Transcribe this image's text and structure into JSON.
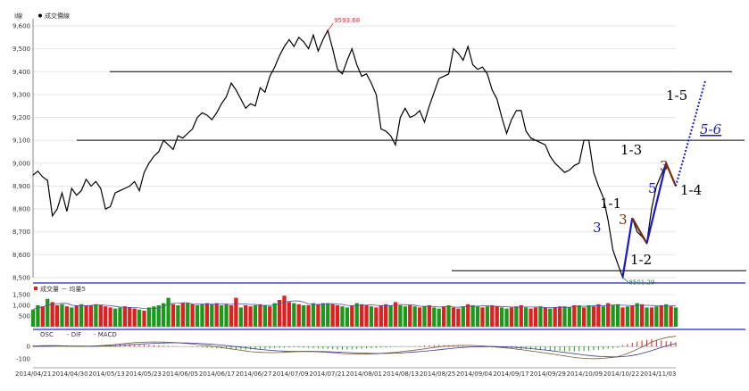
{
  "chart_data": {
    "type": "line",
    "legend": {
      "axis_unit": "I線",
      "series_name": "成交價線"
    },
    "price_ylim": [
      8500,
      9600
    ],
    "y_ticks": [
      "8,500",
      "8,600",
      "8,700",
      "8,800",
      "8,900",
      "9,000",
      "9,100",
      "9,200",
      "9,300",
      "9,400",
      "9,500",
      "9,600"
    ],
    "x_ticks": [
      "2014/04/21",
      "2014/04/30",
      "2014/05/13",
      "2014/05/23",
      "2014/06/05",
      "2014/06/17",
      "2014/06/27",
      "2014/07/09",
      "2014/07/21",
      "2014/08/01",
      "2014/08/13",
      "2014/08/25",
      "2014/09/04",
      "2014/09/17",
      "2014/09/29",
      "2014/10/09",
      "2014/10/22",
      "2014/11/03"
    ],
    "high_label": "9593.68",
    "low_label": "8501.29",
    "close": [
      8948,
      8965,
      8940,
      8925,
      8770,
      8800,
      8870,
      8790,
      8890,
      8860,
      8880,
      8930,
      8900,
      8920,
      8890,
      8800,
      8810,
      8870,
      8880,
      8890,
      8900,
      8920,
      8880,
      8960,
      9000,
      9030,
      9050,
      9100,
      9080,
      9060,
      9120,
      9110,
      9130,
      9150,
      9200,
      9220,
      9210,
      9190,
      9220,
      9260,
      9290,
      9350,
      9320,
      9280,
      9240,
      9260,
      9250,
      9330,
      9310,
      9380,
      9420,
      9470,
      9510,
      9540,
      9510,
      9550,
      9530,
      9500,
      9560,
      9490,
      9540,
      9580,
      9500,
      9410,
      9390,
      9450,
      9500,
      9430,
      9380,
      9390,
      9350,
      9300,
      9150,
      9140,
      9120,
      9080,
      9200,
      9240,
      9200,
      9210,
      9230,
      9180,
      9250,
      9310,
      9370,
      9380,
      9390,
      9500,
      9480,
      9450,
      9510,
      9430,
      9410,
      9420,
      9390,
      9320,
      9280,
      9200,
      9130,
      9190,
      9230,
      9230,
      9140,
      9110,
      9100,
      9090,
      9080,
      9030,
      9000,
      8980,
      8960,
      8970,
      8990,
      9000,
      9100,
      9100,
      8960,
      8900,
      8850,
      8750,
      8620,
      8560,
      8501.29,
      8620,
      8760,
      8700,
      8680,
      8650,
      8800,
      8900,
      8950,
      9000,
      8950,
      8900
    ],
    "horizontal_lines": [
      9400,
      9100,
      8530
    ],
    "annotations": [
      {
        "text": "1-5",
        "color": "#000000"
      },
      {
        "text": "5-6",
        "color": "#1a1acc"
      },
      {
        "text": "1-3",
        "color": "#000000"
      },
      {
        "text": "3",
        "color": "#7a2a10"
      },
      {
        "text": "5",
        "color": "#1a1acc"
      },
      {
        "text": "1-4",
        "color": "#000000"
      },
      {
        "text": "1-1",
        "color": "#000000"
      },
      {
        "text": "3",
        "color": "#1a1acc"
      },
      {
        "text": "3",
        "color": "#7a2a10"
      },
      {
        "text": "1-2",
        "color": "#000000"
      }
    ],
    "volume": {
      "legend": "成交量 － 均量5",
      "y_ticks": [
        "500",
        "1,000",
        "1,500"
      ],
      "ylim": [
        0,
        1500
      ],
      "values": [
        800,
        1000,
        950,
        1300,
        1150,
        1000,
        1050,
        950,
        900,
        1000,
        1050,
        1000,
        1000,
        1050,
        1000,
        950,
        900,
        850,
        900,
        950,
        900,
        850,
        800,
        750,
        900,
        950,
        1000,
        1100,
        1350,
        1050,
        1000,
        1100,
        1100,
        1050,
        1000,
        1050,
        1100,
        1050,
        1100,
        1000,
        1050,
        1000,
        1350,
        900,
        1000,
        950,
        1000,
        1050,
        1000,
        950,
        1100,
        1250,
        1450,
        1150,
        1100,
        1050,
        1000,
        1000,
        1100,
        1050,
        1100,
        1100,
        1050,
        1000,
        950,
        900,
        1000,
        1100,
        1050,
        1000,
        950,
        900,
        1000,
        1050,
        1000,
        1150,
        1000,
        950,
        1000,
        950,
        900,
        950,
        1000,
        900,
        850,
        950,
        1000,
        900,
        850,
        950,
        1050,
        1000,
        950,
        900,
        950,
        1000,
        950,
        900,
        850,
        900,
        950,
        1000,
        900,
        850,
        900,
        950,
        900,
        850,
        900,
        950,
        950,
        900,
        1000,
        1000,
        900,
        1000,
        950,
        1050,
        950,
        1100,
        1000,
        1050,
        900,
        950,
        1000,
        1100,
        1050,
        900,
        900,
        950,
        1000,
        1050,
        950,
        900
      ],
      "colors": [
        "green",
        "green",
        "red",
        "green",
        "red",
        "red",
        "green",
        "red",
        "green",
        "red",
        "green",
        "red",
        "red",
        "green",
        "red",
        "red",
        "red",
        "green",
        "green",
        "red",
        "red",
        "red",
        "green",
        "red",
        "green",
        "green",
        "green",
        "green",
        "green",
        "red",
        "green",
        "red",
        "green",
        "red",
        "green",
        "green",
        "red",
        "green",
        "red",
        "green",
        "green",
        "red",
        "red",
        "green",
        "red",
        "red",
        "green",
        "red",
        "green",
        "red",
        "green",
        "red",
        "red",
        "red",
        "green",
        "red",
        "green",
        "red",
        "green",
        "red",
        "green",
        "green",
        "red",
        "red",
        "green",
        "green",
        "red",
        "green",
        "red",
        "red",
        "green",
        "red",
        "red",
        "red",
        "green",
        "red",
        "green",
        "green",
        "red",
        "green",
        "red",
        "green",
        "red",
        "green",
        "green",
        "red",
        "green",
        "red",
        "red",
        "green",
        "red",
        "green",
        "green",
        "red",
        "green",
        "red",
        "red",
        "green",
        "green",
        "red",
        "green",
        "red",
        "green",
        "red",
        "red",
        "green",
        "red",
        "green",
        "red",
        "red",
        "green",
        "green",
        "red",
        "green",
        "red",
        "green",
        "red",
        "red",
        "green",
        "red",
        "green",
        "green",
        "red",
        "green",
        "red",
        "green",
        "red",
        "green",
        "red",
        "green",
        "red",
        "green",
        "red",
        "green"
      ]
    },
    "macd": {
      "legend": [
        "OSC",
        "DIF",
        "MACD"
      ],
      "y_ticks": [
        "0",
        "-100"
      ],
      "ylim": [
        -160,
        60
      ],
      "osc": [
        10,
        8,
        6,
        4,
        2,
        0,
        -2,
        -4,
        -3,
        -2,
        0,
        2,
        4,
        6,
        8,
        10,
        12,
        14,
        16,
        18,
        18,
        17,
        16,
        15,
        14,
        12,
        10,
        8,
        6,
        4,
        2,
        0,
        -2,
        -4,
        -6,
        -8,
        -10,
        -12,
        -14,
        -16,
        -18,
        -20,
        -22,
        -24,
        -26,
        -24,
        -22,
        -20,
        -18,
        -16,
        -14,
        -12,
        -10,
        -8,
        -6,
        -8,
        -10,
        -12,
        -14,
        -16,
        -18,
        -20,
        -22,
        -24,
        -26,
        -24,
        -22,
        -20,
        -18,
        -16,
        -14,
        -12,
        -10,
        -8,
        -6,
        -4,
        -2,
        0,
        2,
        4,
        6,
        8,
        10,
        12,
        14,
        12,
        10,
        8,
        6,
        4,
        2,
        0,
        -2,
        -4,
        -6,
        -8,
        -10,
        -12,
        -14,
        -16,
        -18,
        -20,
        -22,
        -24,
        -26,
        -28,
        -30,
        -32,
        -34,
        -36,
        -38,
        -40,
        -40,
        -38,
        -36,
        -34,
        -30,
        -26,
        -22,
        -18,
        -14,
        -10,
        10,
        20,
        30,
        40,
        50,
        55,
        60,
        55,
        50,
        45,
        40,
        35
      ]
    }
  }
}
